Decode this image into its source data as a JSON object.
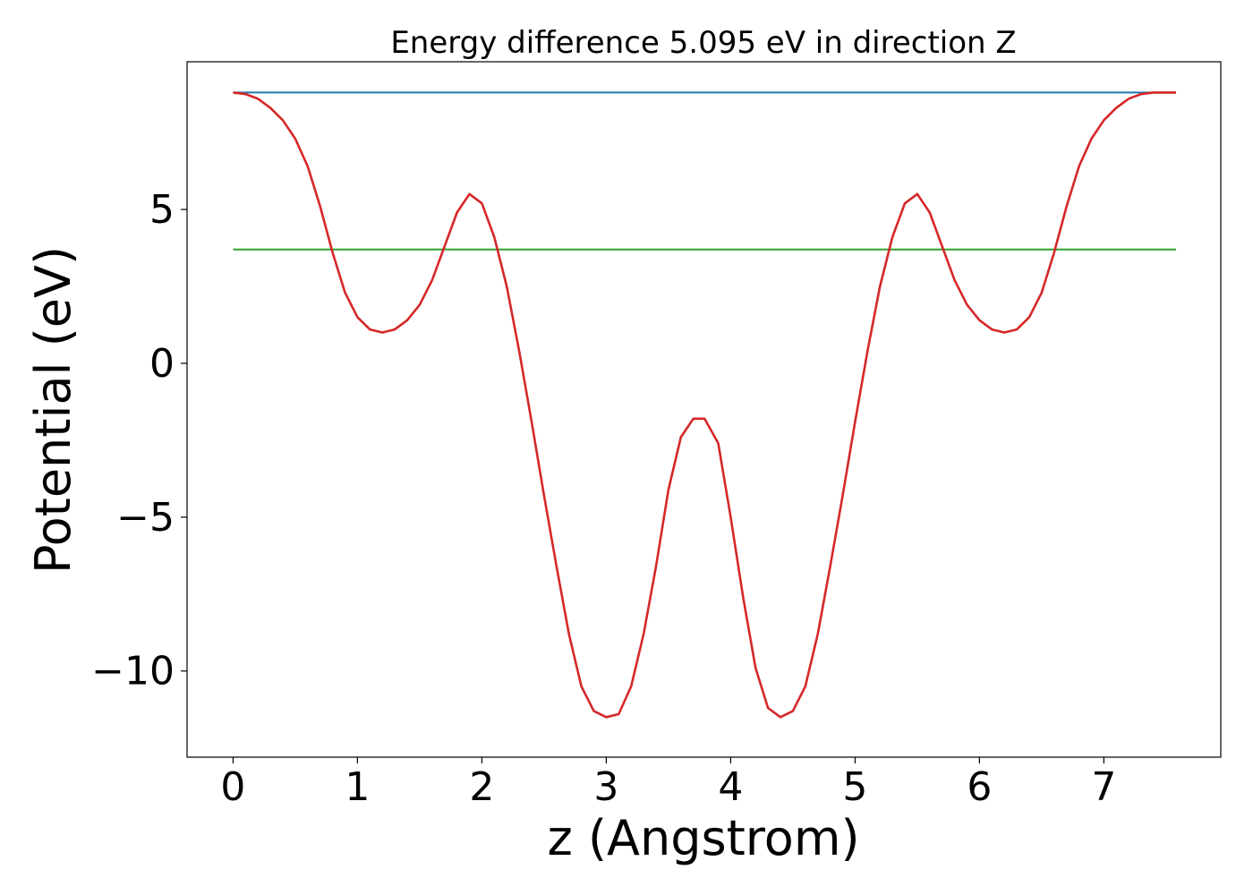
{
  "chart_data": {
    "type": "line",
    "title": "Energy difference 5.095 eV in direction Z",
    "xlabel": "z (Angstrom)",
    "ylabel": "Potential (eV)",
    "xlim": [
      -0.37,
      7.94
    ],
    "ylim": [
      -12.8,
      9.8
    ],
    "xticks": [
      0,
      1,
      2,
      3,
      4,
      5,
      6,
      7
    ],
    "xtick_labels": [
      "0",
      "1",
      "2",
      "3",
      "4",
      "5",
      "6",
      "7"
    ],
    "yticks": [
      -10,
      -5,
      0,
      5
    ],
    "ytick_labels": [
      "−10",
      "−5",
      "0",
      "5"
    ],
    "grid": false,
    "series": [
      {
        "color": "#1f77b4",
        "x": [
          0.0,
          7.58
        ],
        "y": [
          8.8,
          8.8
        ]
      },
      {
        "color": "#2ca02c",
        "x": [
          0.0,
          7.58
        ],
        "y": [
          3.7,
          3.7
        ]
      },
      {
        "color": "#d62728",
        "x": [
          0.0,
          0.1,
          0.2,
          0.3,
          0.4,
          0.5,
          0.6,
          0.7,
          0.8,
          0.9,
          1.0,
          1.1,
          1.2,
          1.3,
          1.4,
          1.5,
          1.6,
          1.7,
          1.8,
          1.9,
          2.0,
          2.1,
          2.2,
          2.3,
          2.4,
          2.5,
          2.6,
          2.7,
          2.8,
          2.9,
          3.0,
          3.1,
          3.2,
          3.3,
          3.4,
          3.5,
          3.6,
          3.7,
          3.79,
          3.9,
          4.0,
          4.1,
          4.2,
          4.3,
          4.4,
          4.5,
          4.6,
          4.7,
          4.8,
          4.9,
          5.0,
          5.1,
          5.2,
          5.3,
          5.4,
          5.5,
          5.6,
          5.7,
          5.8,
          5.9,
          6.0,
          6.1,
          6.2,
          6.3,
          6.4,
          6.5,
          6.6,
          6.7,
          6.8,
          6.9,
          7.0,
          7.1,
          7.2,
          7.3,
          7.4,
          7.5,
          7.58
        ],
        "y": [
          8.8,
          8.75,
          8.6,
          8.3,
          7.9,
          7.3,
          6.4,
          5.1,
          3.6,
          2.3,
          1.5,
          1.1,
          1.0,
          1.1,
          1.4,
          1.9,
          2.7,
          3.8,
          4.9,
          5.5,
          5.2,
          4.1,
          2.5,
          0.4,
          -1.9,
          -4.3,
          -6.6,
          -8.8,
          -10.5,
          -11.3,
          -11.5,
          -11.4,
          -10.5,
          -8.8,
          -6.6,
          -4.1,
          -2.4,
          -1.8,
          -1.8,
          -2.6,
          -5.0,
          -7.6,
          -9.9,
          -11.2,
          -11.5,
          -11.3,
          -10.5,
          -8.8,
          -6.6,
          -4.3,
          -1.9,
          0.4,
          2.5,
          4.1,
          5.2,
          5.5,
          4.9,
          3.8,
          2.7,
          1.9,
          1.4,
          1.1,
          1.0,
          1.1,
          1.5,
          2.3,
          3.6,
          5.1,
          6.4,
          7.3,
          7.9,
          8.3,
          8.6,
          8.75,
          8.8,
          8.8,
          8.8
        ]
      }
    ]
  }
}
